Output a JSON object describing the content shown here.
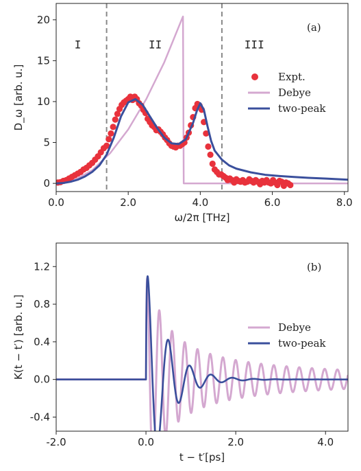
{
  "chart_data": [
    {
      "type": "scatter+line",
      "panel_label": "(a)",
      "xlabel": "ω/2π [THz]",
      "ylabel": "D_ω [arb. u.]",
      "xlim": [
        0,
        8.1
      ],
      "ylim": [
        -1,
        22
      ],
      "xticks": [
        0,
        2,
        4,
        6,
        8
      ],
      "xtick_labels": [
        "0.0",
        "2.0",
        "4.0",
        "6.0",
        "8.0"
      ],
      "yticks": [
        0,
        5,
        10,
        15,
        20
      ],
      "ytick_labels": [
        "0",
        "5",
        "10",
        "15",
        "20"
      ],
      "vlines": [
        1.4,
        4.6
      ],
      "regions": [
        {
          "label": "I",
          "x": 0.6,
          "y": 17
        },
        {
          "label": "II",
          "x": 2.75,
          "y": 17
        },
        {
          "label": "III",
          "x": 5.5,
          "y": 17
        }
      ],
      "legend": {
        "placement": "right",
        "entries": [
          "Expt.",
          "Debye",
          "two-peak"
        ]
      },
      "colors": {
        "expt": "#e8323c",
        "debye": "#d4a8d0",
        "twopeak": "#3a4f9c",
        "vline": "#888888"
      },
      "series": [
        {
          "name": "Expt.",
          "kind": "scatter",
          "x": [
            0.05,
            0.12,
            0.2,
            0.28,
            0.36,
            0.44,
            0.52,
            0.6,
            0.68,
            0.76,
            0.84,
            0.92,
            1.0,
            1.08,
            1.16,
            1.24,
            1.32,
            1.4,
            1.46,
            1.52,
            1.58,
            1.64,
            1.7,
            1.76,
            1.82,
            1.88,
            1.94,
            2.0,
            2.06,
            2.12,
            2.18,
            2.24,
            2.3,
            2.36,
            2.42,
            2.48,
            2.54,
            2.6,
            2.66,
            2.72,
            2.78,
            2.84,
            2.9,
            2.96,
            3.02,
            3.08,
            3.14,
            3.2,
            3.26,
            3.32,
            3.38,
            3.44,
            3.5,
            3.56,
            3.62,
            3.68,
            3.74,
            3.8,
            3.86,
            3.92,
            3.98,
            4.04,
            4.1,
            4.16,
            4.22,
            4.28,
            4.34,
            4.4,
            4.46,
            4.52,
            4.58,
            4.64,
            4.7,
            4.76,
            4.82,
            4.88,
            4.94,
            5.0,
            5.06,
            5.12,
            5.18,
            5.24,
            5.3,
            5.36,
            5.42,
            5.48,
            5.54,
            5.6,
            5.66,
            5.72,
            5.78,
            5.84,
            5.9,
            5.96,
            6.02,
            6.08,
            6.14,
            6.2,
            6.26,
            6.32,
            6.38,
            6.44,
            6.5
          ],
          "y": [
            0.1,
            0.15,
            0.3,
            0.4,
            0.6,
            0.8,
            1.0,
            1.2,
            1.4,
            1.7,
            1.9,
            2.2,
            2.5,
            2.9,
            3.3,
            3.8,
            4.3,
            4.6,
            5.4,
            6.1,
            6.9,
            7.8,
            8.5,
            9.1,
            9.6,
            9.9,
            10.1,
            10.3,
            10.6,
            10.2,
            10.6,
            10.3,
            9.8,
            9.5,
            9.0,
            8.6,
            7.9,
            7.5,
            7.1,
            6.9,
            6.5,
            6.6,
            6.3,
            6.0,
            5.6,
            5.3,
            4.9,
            4.6,
            4.5,
            4.4,
            4.6,
            4.6,
            4.8,
            5.0,
            5.6,
            6.2,
            7.1,
            8.1,
            9.2,
            9.7,
            9.5,
            9.0,
            7.5,
            6.1,
            4.5,
            3.5,
            2.4,
            1.7,
            1.4,
            1.1,
            1.1,
            0.9,
            0.7,
            0.4,
            0.6,
            0.4,
            0.1,
            0.5,
            0.3,
            0.2,
            0.4,
            0.1,
            0.2,
            0.5,
            0.3,
            0.1,
            0.4,
            0.2,
            -0.1,
            0.3,
            0.1,
            0.4,
            0.1,
            0.0,
            0.4,
            0.1,
            -0.2,
            0.3,
            0.2,
            -0.3,
            0.1,
            0.0,
            -0.2
          ]
        },
        {
          "name": "Debye",
          "kind": "line",
          "x": [
            0.0,
            0.5,
            1.0,
            1.5,
            2.0,
            2.5,
            3.0,
            3.5,
            3.52,
            3.54,
            8.1
          ],
          "y": [
            0.0,
            0.4,
            1.6,
            3.7,
            6.6,
            10.3,
            14.8,
            20.2,
            20.4,
            0.0,
            0.0
          ]
        },
        {
          "name": "two-peak",
          "kind": "line",
          "x": [
            0.0,
            0.2,
            0.4,
            0.6,
            0.8,
            1.0,
            1.2,
            1.4,
            1.6,
            1.8,
            2.0,
            2.2,
            2.4,
            2.6,
            2.8,
            3.0,
            3.2,
            3.4,
            3.6,
            3.8,
            3.9,
            4.0,
            4.1,
            4.2,
            4.3,
            4.4,
            4.6,
            4.8,
            5.0,
            5.4,
            5.8,
            6.2,
            6.6,
            7.0,
            7.5,
            8.1
          ],
          "y": [
            0.0,
            0.05,
            0.2,
            0.45,
            0.85,
            1.4,
            2.2,
            3.5,
            5.6,
            8.2,
            9.9,
            10.3,
            9.6,
            8.2,
            6.8,
            5.6,
            4.9,
            4.8,
            5.4,
            7.4,
            8.8,
            9.8,
            9.0,
            7.0,
            5.2,
            4.0,
            2.9,
            2.2,
            1.8,
            1.35,
            1.05,
            0.9,
            0.78,
            0.68,
            0.58,
            0.45
          ]
        }
      ]
    },
    {
      "type": "line",
      "panel_label": "(b)",
      "xlabel": "t − t′[ps]",
      "ylabel": "K(t − t′) [arb. u.]",
      "xlim": [
        -2.0,
        4.5
      ],
      "ylim": [
        -0.55,
        1.45
      ],
      "xticks": [
        -2,
        0,
        2,
        4
      ],
      "xtick_labels": [
        "-2.0",
        "0.0",
        "2.0",
        "4.0"
      ],
      "yticks": [
        -0.4,
        0.0,
        0.4,
        0.8,
        1.2
      ],
      "ytick_labels": [
        "-0.4",
        "0.0",
        "0.4",
        "0.8",
        "1.2"
      ],
      "legend": {
        "placement": "right",
        "entries": [
          "Debye",
          "two-peak"
        ]
      },
      "colors": {
        "debye": "#d4a8d0",
        "twopeak": "#3a4f9c"
      },
      "series": [
        {
          "name": "Debye",
          "kind": "oscillation",
          "t0": 0.0,
          "amplitude": 1.33,
          "frequency_thz": 3.53,
          "decay": 0.85,
          "envelope": "power"
        },
        {
          "name": "two-peak",
          "kind": "oscillation",
          "t0": 0.0,
          "amplitude": 1.26,
          "frequency_thz": 2.1,
          "decay": 2.2,
          "envelope": "exp"
        }
      ]
    }
  ]
}
